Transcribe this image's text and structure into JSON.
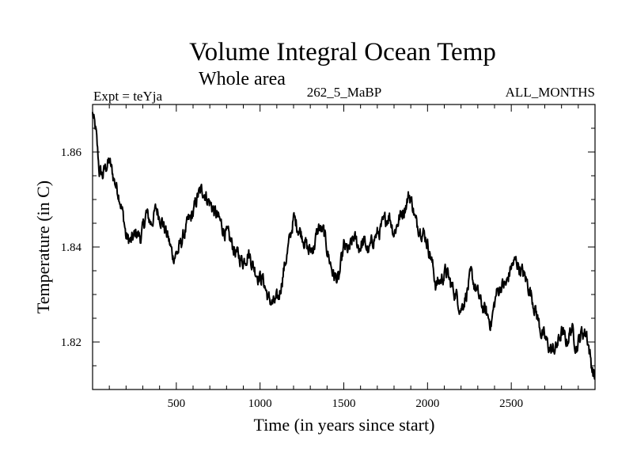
{
  "chart_data": {
    "type": "line",
    "title": "Volume Integral Ocean Temp",
    "subtitle": "Whole area",
    "left_label": "Expt = teYja",
    "center_label": "262_5_MaBP",
    "right_label": "ALL_MONTHS",
    "xlabel": "Time (in years since start)",
    "ylabel": "Temperature (in C)",
    "xlim": [
      0,
      3000
    ],
    "ylim": [
      1.81,
      1.87
    ],
    "xticks": [
      500,
      1000,
      1500,
      2000,
      2500
    ],
    "xtick_labels": [
      "500",
      "1000",
      "1500",
      "2000",
      "2500"
    ],
    "yticks": [
      1.82,
      1.84,
      1.86
    ],
    "ytick_labels": [
      "1.82",
      "1.84",
      "1.86"
    ],
    "grid": false,
    "series": [
      {
        "name": "Volume Integral Ocean Temp",
        "color": "#000000",
        "x": [
          0,
          20,
          40,
          60,
          80,
          100,
          130,
          160,
          190,
          200,
          230,
          260,
          290,
          320,
          350,
          380,
          410,
          450,
          480,
          510,
          540,
          570,
          600,
          630,
          660,
          690,
          720,
          750,
          780,
          810,
          840,
          870,
          900,
          930,
          960,
          990,
          1020,
          1050,
          1080,
          1110,
          1140,
          1170,
          1200,
          1230,
          1260,
          1290,
          1320,
          1350,
          1380,
          1410,
          1440,
          1470,
          1500,
          1530,
          1560,
          1590,
          1620,
          1650,
          1680,
          1710,
          1740,
          1770,
          1800,
          1830,
          1860,
          1890,
          1910,
          1930,
          1960,
          1990,
          2020,
          2050,
          2080,
          2110,
          2140,
          2170,
          2200,
          2230,
          2260,
          2290,
          2320,
          2350,
          2380,
          2410,
          2440,
          2470,
          2500,
          2530,
          2560,
          2590,
          2620,
          2650,
          2680,
          2710,
          2740,
          2770,
          2800,
          2830,
          2860,
          2890,
          2920,
          2950,
          2980,
          3000
        ],
        "values": [
          1.868,
          1.864,
          1.856,
          1.855,
          1.857,
          1.858,
          1.854,
          1.851,
          1.845,
          1.842,
          1.841,
          1.843,
          1.842,
          1.847,
          1.845,
          1.848,
          1.846,
          1.842,
          1.838,
          1.839,
          1.842,
          1.845,
          1.847,
          1.851,
          1.852,
          1.85,
          1.848,
          1.846,
          1.844,
          1.842,
          1.84,
          1.838,
          1.837,
          1.839,
          1.836,
          1.834,
          1.833,
          1.829,
          1.828,
          1.829,
          1.835,
          1.84,
          1.846,
          1.844,
          1.842,
          1.839,
          1.84,
          1.844,
          1.843,
          1.838,
          1.834,
          1.833,
          1.84,
          1.839,
          1.842,
          1.84,
          1.841,
          1.839,
          1.842,
          1.843,
          1.845,
          1.847,
          1.843,
          1.846,
          1.848,
          1.851,
          1.849,
          1.845,
          1.844,
          1.842,
          1.838,
          1.832,
          1.833,
          1.835,
          1.832,
          1.83,
          1.827,
          1.83,
          1.834,
          1.831,
          1.828,
          1.826,
          1.824,
          1.83,
          1.832,
          1.832,
          1.836,
          1.837,
          1.835,
          1.833,
          1.83,
          1.826,
          1.822,
          1.82,
          1.818,
          1.819,
          1.822,
          1.82,
          1.823,
          1.819,
          1.822,
          1.822,
          1.815,
          1.812
        ]
      }
    ]
  }
}
